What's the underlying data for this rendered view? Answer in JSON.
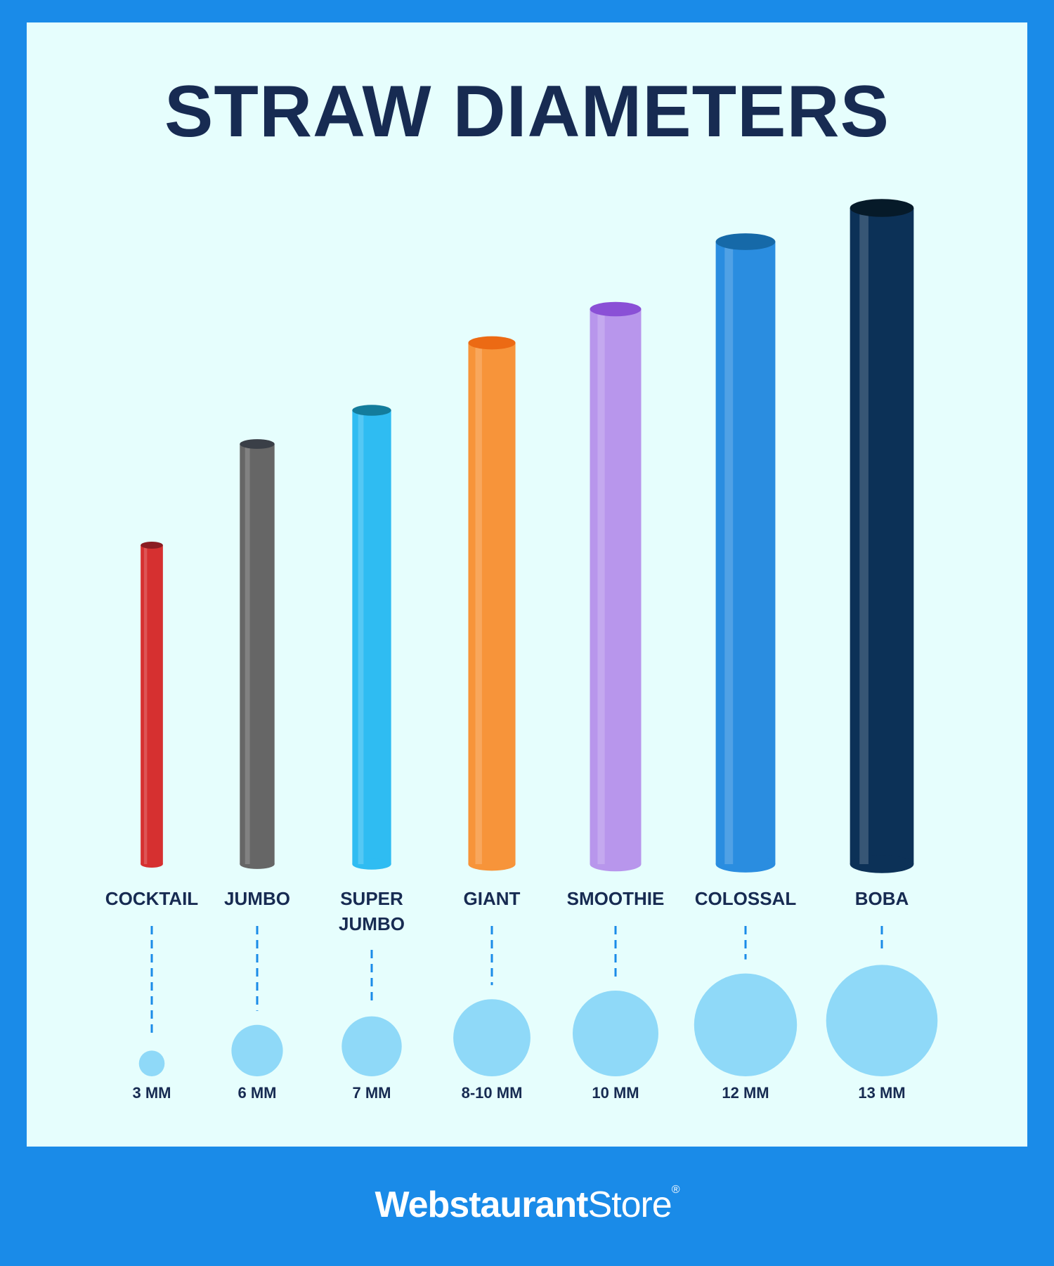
{
  "chart_data": {
    "type": "bar",
    "title": "STRAW DIAMETERS",
    "categories": [
      "COCKTAIL",
      "JUMBO",
      "SUPER JUMBO",
      "GIANT",
      "SMOOTHIE",
      "COLOSSAL",
      "BOBA"
    ],
    "label_lines": [
      [
        "COCKTAIL"
      ],
      [
        "JUMBO"
      ],
      [
        "SUPER",
        "JUMBO"
      ],
      [
        "GIANT"
      ],
      [
        "SMOOTHIE"
      ],
      [
        "COLOSSAL"
      ],
      [
        "BOBA"
      ]
    ],
    "diameter_labels": [
      "3 MM",
      "6 MM",
      "7 MM",
      "8-10 MM",
      "10 MM",
      "12 MM",
      "13 MM"
    ],
    "diameter_mm": [
      3,
      6,
      7,
      9,
      10,
      12,
      13
    ],
    "colors": [
      "#d63030",
      "#666666",
      "#2fbcf2",
      "#f7943a",
      "#b896ec",
      "#2a8de0",
      "#0c3157"
    ],
    "cap_colors": [
      "#8a1c22",
      "#3a3f47",
      "#137c9c",
      "#ec6a14",
      "#8a50d6",
      "#1669a8",
      "#061a29"
    ],
    "circle_color": "#8fd9f8",
    "text_color": "#172b52"
  },
  "footer": {
    "brand_bold": "Webstaurant",
    "brand_light": "Store",
    "registered": "®"
  }
}
